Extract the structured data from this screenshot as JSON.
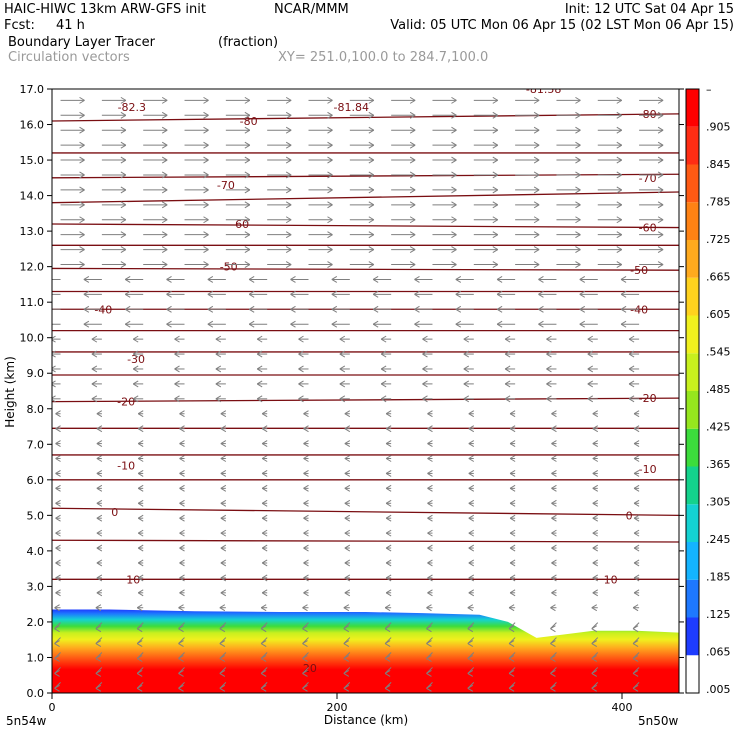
{
  "header": {
    "model_title": "HAIC-HIWC 13km ARW-GFS init",
    "org": "NCAR/MMM",
    "init_time": "Init: 12 UTC Sat 04 Apr 15",
    "forecast_label": "Fcst:",
    "forecast_hours": "41 h",
    "valid_time": "Valid: 05 UTC Mon 06 Apr 15 (02 LST Mon 06 Apr 15)",
    "field_name": "Boundary Layer Tracer",
    "field_units": "(fraction)",
    "overlay_name": "Circulation vectors",
    "cross_section": "XY= 251.0,100.0 to 284.7,100.0"
  },
  "colors": {
    "contour": "#7a0e12",
    "vector": "#7f7f7f",
    "scale": [
      "#ffffff",
      "#1e3cff",
      "#1e78ff",
      "#14b4ff",
      "#14d2d2",
      "#14d28c",
      "#3cdc3c",
      "#96e61e",
      "#c8f01e",
      "#f0f01e",
      "#ffd21e",
      "#ffaa1e",
      "#ff8214",
      "#ff5a14",
      "#ff2d14",
      "#ff0000"
    ]
  },
  "chart_data": {
    "type": "heatmap",
    "title": "Boundary Layer Tracer",
    "units": "(fraction)",
    "xlabel": "Distance (km)",
    "ylabel": "Height (km)",
    "xlim": [
      0,
      440
    ],
    "ylim": [
      0,
      17
    ],
    "x_ticks": [
      "0",
      "200",
      "400"
    ],
    "x_tick_values": [
      0,
      200,
      400
    ],
    "y_ticks": [
      "0.0",
      "1.0",
      "2.0",
      "3.0",
      "4.0",
      "5.0",
      "6.0",
      "7.0",
      "8.0",
      "9.0",
      "10.0",
      "11.0",
      "12.0",
      "13.0",
      "14.0",
      "15.0",
      "16.0",
      "17.0"
    ],
    "left_endpoint": "5n54w",
    "right_endpoint": "5n50w",
    "colorbar_labels": [
      "–",
      ".905",
      ".845",
      ".785",
      ".725",
      ".665",
      ".605",
      ".545",
      ".485",
      ".425",
      ".365",
      ".305",
      ".245",
      ".185",
      ".125",
      ".065",
      ".005"
    ],
    "tracer_top_km": [
      [
        0,
        2.35
      ],
      [
        40,
        2.35
      ],
      [
        100,
        2.3
      ],
      [
        160,
        2.28
      ],
      [
        220,
        2.28
      ],
      [
        260,
        2.25
      ],
      [
        300,
        2.2
      ],
      [
        320,
        2.0
      ],
      [
        340,
        1.55
      ],
      [
        380,
        1.75
      ],
      [
        410,
        1.75
      ],
      [
        440,
        1.7
      ]
    ],
    "contour_labels": [
      {
        "label": "-82.3",
        "x": 56,
        "y": 16.5
      },
      {
        "label": "-81.84",
        "x": 210,
        "y": 16.5
      },
      {
        "label": "-81.58",
        "x": 345,
        "y": 17.0
      },
      {
        "label": "-80",
        "x": 138,
        "y": 16.1
      },
      {
        "label": "-80",
        "x": 418,
        "y": 16.3
      },
      {
        "label": "-70",
        "x": 122,
        "y": 14.3
      },
      {
        "label": "-70",
        "x": 418,
        "y": 14.5
      },
      {
        "label": "-60",
        "x": 132,
        "y": 13.2
      },
      {
        "label": "-60",
        "x": 418,
        "y": 13.1
      },
      {
        "label": "-50",
        "x": 124,
        "y": 12.0
      },
      {
        "label": "-50",
        "x": 412,
        "y": 11.9
      },
      {
        "label": "-40",
        "x": 36,
        "y": 10.8
      },
      {
        "label": "-40",
        "x": 412,
        "y": 10.8
      },
      {
        "label": "-30",
        "x": 59,
        "y": 9.4
      },
      {
        "label": "-20",
        "x": 52,
        "y": 8.2
      },
      {
        "label": "-20",
        "x": 418,
        "y": 8.3
      },
      {
        "label": "-10",
        "x": 52,
        "y": 6.4
      },
      {
        "label": "-10",
        "x": 418,
        "y": 6.3
      },
      {
        "label": "0",
        "x": 44,
        "y": 5.1
      },
      {
        "label": "0",
        "x": 405,
        "y": 5.0
      },
      {
        "label": "10",
        "x": 57,
        "y": 3.2
      },
      {
        "label": "10",
        "x": 392,
        "y": 3.2
      },
      {
        "label": "20",
        "x": 181,
        "y": 0.7
      }
    ],
    "contour_levels_km": [
      {
        "x": [
          0,
          440
        ],
        "y": [
          16.1,
          16.3
        ]
      },
      {
        "x": [
          0,
          440
        ],
        "y": [
          15.2,
          15.2
        ]
      },
      {
        "x": [
          0,
          440
        ],
        "y": [
          14.5,
          14.6
        ]
      },
      {
        "x": [
          0,
          440
        ],
        "y": [
          13.8,
          14.1
        ]
      },
      {
        "x": [
          0,
          440
        ],
        "y": [
          13.2,
          13.1
        ]
      },
      {
        "x": [
          0,
          440
        ],
        "y": [
          12.6,
          12.6
        ]
      },
      {
        "x": [
          0,
          440
        ],
        "y": [
          11.95,
          11.9
        ]
      },
      {
        "x": [
          0,
          440
        ],
        "y": [
          11.3,
          11.3
        ]
      },
      {
        "x": [
          0,
          440
        ],
        "y": [
          10.8,
          10.8
        ]
      },
      {
        "x": [
          0,
          440
        ],
        "y": [
          10.2,
          10.2
        ]
      },
      {
        "x": [
          0,
          440
        ],
        "y": [
          9.6,
          9.6
        ]
      },
      {
        "x": [
          0,
          440
        ],
        "y": [
          8.95,
          8.95
        ]
      },
      {
        "x": [
          0,
          440
        ],
        "y": [
          8.2,
          8.3
        ]
      },
      {
        "x": [
          0,
          440
        ],
        "y": [
          7.45,
          7.45
        ]
      },
      {
        "x": [
          0,
          440
        ],
        "y": [
          6.7,
          6.7
        ]
      },
      {
        "x": [
          0,
          440
        ],
        "y": [
          6.0,
          6.0
        ]
      },
      {
        "x": [
          0,
          440
        ],
        "y": [
          5.2,
          5.0
        ]
      },
      {
        "x": [
          0,
          440
        ],
        "y": [
          4.3,
          4.25
        ]
      },
      {
        "x": [
          0,
          440
        ],
        "y": [
          3.2,
          3.2
        ]
      }
    ]
  }
}
